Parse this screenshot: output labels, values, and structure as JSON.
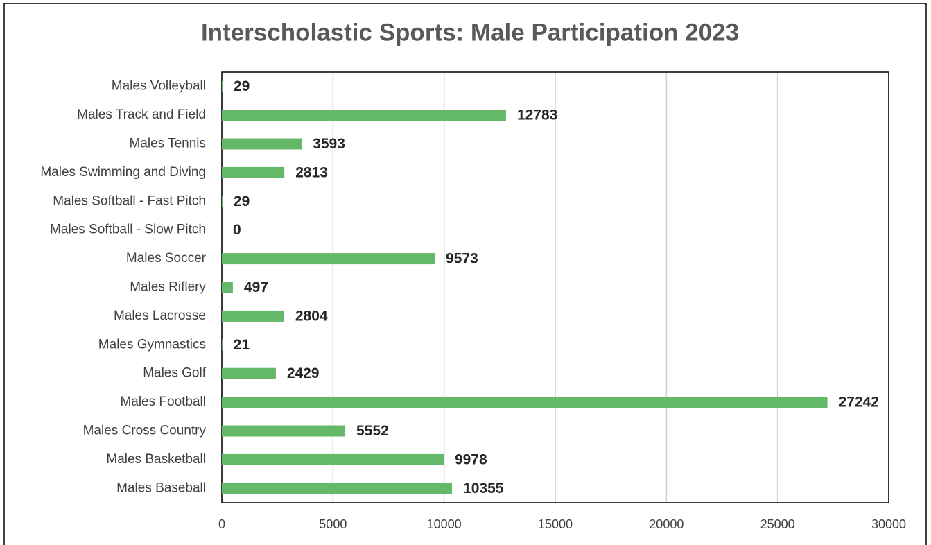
{
  "chart_data": {
    "type": "bar",
    "orientation": "horizontal",
    "title": "Interscholastic Sports: Male Participation 2023",
    "categories": [
      "Males Volleyball",
      "Males Track and Field",
      "Males Tennis",
      "Males Swimming and Diving",
      "Males Softball - Fast Pitch",
      "Males Softball - Slow Pitch",
      "Males Soccer",
      "Males Riflery",
      "Males Lacrosse",
      "Males Gymnastics",
      "Males Golf",
      "Males Football",
      "Males Cross Country",
      "Males Basketball",
      "Males Baseball"
    ],
    "values": [
      29,
      12783,
      3593,
      2813,
      29,
      0,
      9573,
      497,
      2804,
      21,
      2429,
      27242,
      5552,
      9978,
      10355
    ],
    "color": "#63b967",
    "xlim": [
      0,
      30000
    ],
    "xticks": [
      0,
      5000,
      10000,
      15000,
      20000,
      25000,
      30000
    ],
    "grid": true
  }
}
